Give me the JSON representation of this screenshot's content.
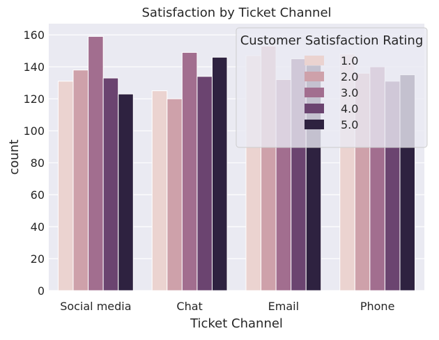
{
  "chart_data": {
    "type": "bar",
    "title": "Satisfaction by Ticket Channel",
    "xlabel": "Ticket Channel",
    "ylabel": "count",
    "categories": [
      "Social media",
      "Chat",
      "Email",
      "Phone"
    ],
    "ylim": [
      0,
      167
    ],
    "yticks": [
      "0",
      "20",
      "40",
      "60",
      "80",
      "100",
      "120",
      "140",
      "160"
    ],
    "grid": true,
    "legend_title": "Customer Satisfaction Rating",
    "legend_position": "top-right",
    "series": [
      {
        "name": "1.0",
        "color": "#ebd3d0",
        "values": [
          131,
          125,
          147,
          148
        ]
      },
      {
        "name": "2.0",
        "color": "#cea1aa",
        "values": [
          138,
          120,
          153,
          136
        ]
      },
      {
        "name": "3.0",
        "color": "#a26e8f",
        "values": [
          159,
          149,
          132,
          140
        ]
      },
      {
        "name": "4.0",
        "color": "#6b4470",
        "values": [
          133,
          134,
          145,
          131
        ]
      },
      {
        "name": "5.0",
        "color": "#2e2240",
        "values": [
          123,
          146,
          141,
          135
        ]
      }
    ]
  },
  "colors": {
    "plot_background": "#eaeaf2",
    "grid": "#ffffff",
    "text": "#262626"
  }
}
